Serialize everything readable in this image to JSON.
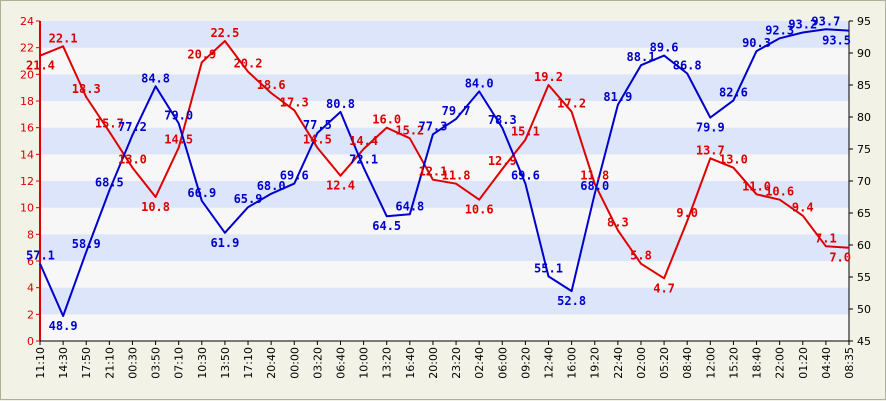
{
  "chart_data": {
    "type": "line",
    "x": [
      "11:10",
      "14:30",
      "17:50",
      "21:10",
      "00:30",
      "03:50",
      "07:10",
      "10:30",
      "13:50",
      "17:10",
      "20:40",
      "00:00",
      "03:20",
      "06:40",
      "10:00",
      "13:20",
      "16:40",
      "20:00",
      "23:20",
      "02:40",
      "06:00",
      "09:20",
      "12:40",
      "16:00",
      "19:20",
      "22:40",
      "02:00",
      "05:20",
      "08:40",
      "12:00",
      "15:20",
      "18:40",
      "22:00",
      "01:20",
      "04:40",
      "08:35"
    ],
    "x_tick_labels": [
      "11:10",
      "14:30",
      "17:50",
      "21:10",
      "00:30",
      "03:50",
      "07:10",
      "10:30",
      "13:50",
      "17:10",
      "20:40",
      "00:00",
      "03:20",
      "06:40",
      "10:00",
      "13:20",
      "16:40",
      "20:00",
      "23:20",
      "02:40",
      "06:00",
      "09:20",
      "12:40",
      "16:00",
      "19:20",
      "22:40",
      "02:00",
      "05:20",
      "08:40",
      "12:00",
      "15:20",
      "18:40",
      "22:00",
      "01:20",
      "04:40",
      "08:35"
    ],
    "y_left": {
      "ylim": [
        0,
        24
      ],
      "ticks": [
        "0",
        "2",
        "4",
        "6",
        "8",
        "10",
        "12",
        "14",
        "16",
        "18",
        "20",
        "22",
        "24"
      ]
    },
    "y_right": {
      "ylim": [
        45,
        95
      ],
      "ticks": [
        "45",
        "50",
        "55",
        "60",
        "65",
        "70",
        "75",
        "80",
        "85",
        "90",
        "95"
      ]
    },
    "grid": true,
    "series": [
      {
        "axis": "left",
        "color": "#dd0000",
        "values": [
          21.4,
          22.1,
          18.3,
          15.7,
          13.0,
          10.8,
          14.5,
          20.9,
          22.5,
          20.2,
          18.6,
          17.3,
          14.5,
          12.4,
          14.4,
          16.0,
          15.2,
          12.1,
          11.8,
          10.6,
          12.9,
          15.1,
          19.2,
          17.2,
          11.8,
          8.3,
          5.8,
          4.7,
          9.0,
          13.7,
          13.0,
          11.0,
          10.6,
          9.4,
          7.1,
          7.0
        ],
        "labels": [
          "21.4",
          "22.1",
          "18.3",
          "15.7",
          "13.0",
          "10.8",
          "14.5",
          "20.9",
          "22.5",
          "20.2",
          "18.6",
          "17.3",
          "14.5",
          "12.4",
          "14.4",
          "16.0",
          "15.2",
          "12.1",
          "11.8",
          "10.6",
          "12.9",
          "15.1",
          "19.2",
          "17.2",
          "11.8",
          "8.3",
          "5.8",
          "4.7",
          "9.0",
          "13.7",
          "13.0",
          "11.0",
          "10.6",
          "9.4",
          "7.1",
          "7.0"
        ]
      },
      {
        "axis": "right",
        "color": "#0000cc",
        "values": [
          57.1,
          48.9,
          58.9,
          68.5,
          77.2,
          84.8,
          79.0,
          66.9,
          61.9,
          65.9,
          68.0,
          69.6,
          77.5,
          80.8,
          72.1,
          64.5,
          64.8,
          77.3,
          79.7,
          84.0,
          78.3,
          69.6,
          55.1,
          52.8,
          68.0,
          81.9,
          88.1,
          89.6,
          86.8,
          79.9,
          82.6,
          90.3,
          92.3,
          93.2,
          93.7,
          93.5
        ],
        "labels": [
          "57.1",
          "48.9",
          "58.9",
          "68.5",
          "77.2",
          "84.8",
          "79.0",
          "66.9",
          "61.9",
          "65.9",
          "68.0",
          "69.6",
          "77.5",
          "80.8",
          "72.1",
          "64.5",
          "64.8",
          "77.3",
          "79.7",
          "84.0",
          "78.3",
          "69.6",
          "55.1",
          "52.8",
          "68.0",
          "81.9",
          "88.1",
          "89.6",
          "86.8",
          "79.9",
          "82.6",
          "90.3",
          "92.3",
          "93.2",
          "93.7",
          "93.5"
        ]
      }
    ]
  },
  "colors": {
    "frame_background": "#f2f2e6",
    "band_light": "#f7f7f7",
    "band_dark": "#dde5fb",
    "left_axis": "#dd0000",
    "right_axis": "#000000"
  }
}
